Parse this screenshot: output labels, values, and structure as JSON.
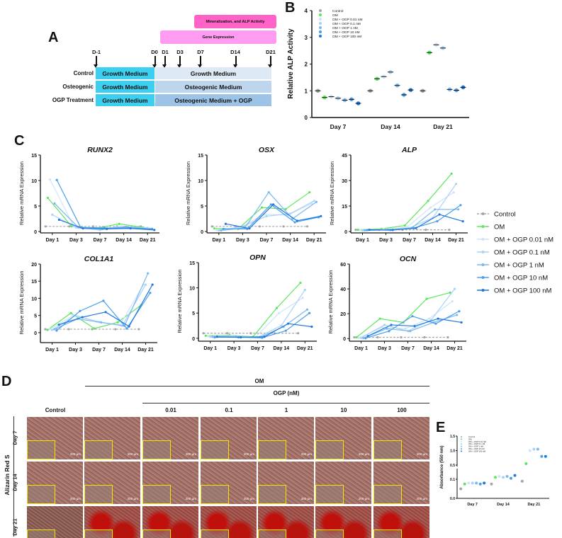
{
  "legend": {
    "series": [
      "Control",
      "OM",
      "OM + OGP 0.01 nM",
      "OM + OGP 0.1 nM",
      "OM + OGP 1 nM",
      "OM + OGP 10 nM",
      "OM + OGP 100 nM"
    ],
    "colors": [
      "#a6a6a6",
      "#5ce65c",
      "#cfe4fa",
      "#a9d2f5",
      "#7ab8f0",
      "#4a9eec",
      "#1f78de"
    ]
  },
  "panel_a": {
    "label": "A",
    "phase_mineralization": "Mineralization, and ALP Activity",
    "phase_gene": "Gene Expression",
    "days": [
      "D-1",
      "D0",
      "D1",
      "D3",
      "D7",
      "D14",
      "D21"
    ],
    "rows": [
      {
        "group": "Control",
        "pre": "Growth Medium",
        "post": "Growth Medium"
      },
      {
        "group": "Osteogenic",
        "pre": "Growth Medium",
        "post": "Osteogenic Medium"
      },
      {
        "group": "OGP Treatment",
        "pre": "Growth Medium",
        "post": "Osteogenic Medium + OGP"
      }
    ]
  },
  "panel_b": {
    "label": "B"
  },
  "panel_c": {
    "label": "C"
  },
  "panel_d": {
    "label": "D",
    "om": "OM",
    "ogp": "OGP (nM)",
    "columns": [
      "Control",
      "",
      "0.01",
      "0.1",
      "1",
      "10",
      "100"
    ],
    "rows": [
      "Day 7",
      "Day 14",
      "Day 21"
    ],
    "stain": "Alizarin Red S",
    "scale_bar": "200 µm"
  },
  "panel_e": {
    "label": "E"
  },
  "chart_data": [
    {
      "id": "B",
      "type": "scatter",
      "title": "",
      "xlabel": "",
      "ylabel": "Relative ALP Activity",
      "categories": [
        "Day 7",
        "Day 14",
        "Day 21"
      ],
      "ylim": [
        0,
        4
      ],
      "yticks": [
        "0",
        "1",
        "2",
        "3",
        "4"
      ],
      "series": [
        {
          "name": "Control",
          "values": [
            1.0,
            1.0,
            1.0
          ]
        },
        {
          "name": "OM",
          "values": [
            0.75,
            1.45,
            2.43
          ]
        },
        {
          "name": "OM + OGP 0.01 nM",
          "values": [
            0.78,
            1.53,
            2.72
          ]
        },
        {
          "name": "OM + OGP 0.1 nM",
          "values": [
            0.72,
            1.7,
            2.6
          ]
        },
        {
          "name": "OM + OGP 1 nM",
          "values": [
            0.65,
            1.2,
            1.05
          ]
        },
        {
          "name": "OM + OGP 10 nM",
          "values": [
            0.68,
            0.85,
            1.02
          ]
        },
        {
          "name": "OM + OGP 100 nM",
          "values": [
            0.53,
            1.03,
            1.13
          ]
        }
      ],
      "annotations": [
        "*"
      ]
    },
    {
      "id": "RUNX2",
      "type": "line",
      "title": "RUNX2",
      "ylabel": "Relative mRNA Expression",
      "categories": [
        "Day 1",
        "Day 3",
        "Day 7",
        "Day 14",
        "Day 21"
      ],
      "ylim": [
        0,
        15
      ],
      "yticks": [
        "0",
        "5",
        "10",
        "15"
      ],
      "series": [
        {
          "name": "Control",
          "values": [
            1,
            1,
            1,
            1,
            1
          ]
        },
        {
          "name": "OM",
          "values": [
            6.6,
            1.0,
            0.6,
            1.5,
            0.8
          ]
        },
        {
          "name": "OM + OGP 0.01 nM",
          "values": [
            10.2,
            1.0,
            0.4,
            1.0,
            0.7
          ]
        },
        {
          "name": "OM + OGP 0.1 nM",
          "values": [
            3.3,
            0.8,
            0.3,
            0.9,
            0.7
          ]
        },
        {
          "name": "OM + OGP 1 nM",
          "values": [
            5.5,
            0.8,
            0.5,
            0.9,
            0.5
          ]
        },
        {
          "name": "OM + OGP 10 nM",
          "values": [
            10.1,
            0.8,
            0.7,
            0.7,
            0.5
          ]
        },
        {
          "name": "OM + OGP 100 nM",
          "values": [
            2.3,
            0.6,
            0.5,
            0.6,
            0.3
          ]
        }
      ]
    },
    {
      "id": "OSX",
      "type": "line",
      "title": "OSX",
      "ylabel": "Relative mRNA Expression",
      "categories": [
        "Day 1",
        "Day 3",
        "Day 7",
        "Day 14",
        "Day 21"
      ],
      "ylim": [
        0,
        15
      ],
      "yticks": [
        "0",
        "5",
        "10",
        "15"
      ],
      "series": [
        {
          "name": "Control",
          "values": [
            1,
            1,
            1,
            1,
            1
          ]
        },
        {
          "name": "OM",
          "values": [
            0.6,
            0.5,
            4.7,
            4.4,
            7.7
          ]
        },
        {
          "name": "OM + OGP 0.01 nM",
          "values": [
            0.3,
            0.8,
            3.4,
            3.2,
            5.5
          ]
        },
        {
          "name": "OM + OGP 0.1 nM",
          "values": [
            0.2,
            1.0,
            3.0,
            3.5,
            6.0
          ]
        },
        {
          "name": "OM + OGP 1 nM",
          "values": [
            0.2,
            0.7,
            7.7,
            2.5,
            5.8
          ]
        },
        {
          "name": "OM + OGP 10 nM",
          "values": [
            0.5,
            0.5,
            5.3,
            1.8,
            2.8
          ]
        },
        {
          "name": "OM + OGP 100 nM",
          "values": [
            1.5,
            0.6,
            5.3,
            2.1,
            3.0
          ]
        }
      ]
    },
    {
      "id": "ALP",
      "type": "line",
      "title": "ALP",
      "ylabel": "Relative mRNA Expression",
      "categories": [
        "Day 1",
        "Day 3",
        "Day 7",
        "Day 14",
        "Day 21"
      ],
      "ylim": [
        0,
        45
      ],
      "yticks": [
        "0",
        "15",
        "30",
        "45"
      ],
      "series": [
        {
          "name": "Control",
          "values": [
            1,
            1,
            1,
            1,
            1
          ]
        },
        {
          "name": "OM",
          "values": [
            1.0,
            1.5,
            3.5,
            18,
            34
          ]
        },
        {
          "name": "OM + OGP 0.01 nM",
          "values": [
            0.7,
            1.2,
            2.5,
            14,
            23
          ]
        },
        {
          "name": "OM + OGP 0.1 nM",
          "values": [
            0.6,
            1.0,
            2.0,
            8,
            28
          ]
        },
        {
          "name": "OM + OGP 1 nM",
          "values": [
            0.6,
            1.0,
            2.0,
            13,
            13
          ]
        },
        {
          "name": "OM + OGP 10 nM",
          "values": [
            0.8,
            0.9,
            2.0,
            6,
            15.5
          ]
        },
        {
          "name": "OM + OGP 100 nM",
          "values": [
            1.0,
            0.9,
            2.0,
            10,
            6
          ]
        }
      ]
    },
    {
      "id": "COL1A1",
      "type": "line",
      "title": "COL1A1",
      "ylabel": "Relative mRNA Expression",
      "categories": [
        "Day 1",
        "Day 3",
        "Day 7",
        "Day 14",
        "Day 21"
      ],
      "ylim": [
        -2.5,
        20
      ],
      "yticks": [
        "0",
        "5",
        "10",
        "15",
        "20"
      ],
      "series": [
        {
          "name": "Control",
          "values": [
            1,
            1,
            1,
            1,
            1
          ]
        },
        {
          "name": "OM",
          "values": [
            0.8,
            5.7,
            1.2,
            3.0,
            8.0
          ]
        },
        {
          "name": "OM + OGP 0.01 nM",
          "values": [
            1.0,
            5.0,
            3.2,
            2.2,
            14
          ]
        },
        {
          "name": "OM + OGP 0.1 nM",
          "values": [
            0.8,
            5.0,
            3.1,
            2.0,
            14
          ]
        },
        {
          "name": "OM + OGP 1 nM",
          "values": [
            1.0,
            4.0,
            3.0,
            2.0,
            17.3
          ]
        },
        {
          "name": "OM + OGP 10 nM",
          "values": [
            0.6,
            6.3,
            9.3,
            1.2,
            11.6
          ]
        },
        {
          "name": "OM + OGP 100 nM",
          "values": [
            2.3,
            4.5,
            6.0,
            1.8,
            14
          ]
        }
      ]
    },
    {
      "id": "OPN",
      "type": "line",
      "title": "OPN",
      "ylabel": "Relative mRNA Expression",
      "categories": [
        "Day 1",
        "Day 3",
        "Day 7",
        "Day 14",
        "Day 21"
      ],
      "ylim": [
        -0.3,
        15
      ],
      "yticks": [
        "0",
        "5",
        "10",
        "15"
      ],
      "series": [
        {
          "name": "Control",
          "values": [
            1,
            1,
            1,
            1,
            1
          ]
        },
        {
          "name": "OM",
          "values": [
            0.5,
            0.6,
            0.3,
            6.0,
            11.0
          ]
        },
        {
          "name": "OM + OGP 0.01 nM",
          "values": [
            0.4,
            0.5,
            0.2,
            5.0,
            8.0
          ]
        },
        {
          "name": "OM + OGP 0.1 nM",
          "values": [
            0.3,
            0.4,
            0.2,
            2.5,
            9.6
          ]
        },
        {
          "name": "OM + OGP 1 nM",
          "values": [
            0.3,
            0.3,
            0.2,
            2.3,
            5.7
          ]
        },
        {
          "name": "OM + OGP 10 nM",
          "values": [
            0.2,
            0.2,
            0.1,
            1.5,
            5.0
          ]
        },
        {
          "name": "OM + OGP 100 nM",
          "values": [
            0.3,
            0.2,
            0.3,
            2.9,
            2.3
          ]
        }
      ]
    },
    {
      "id": "OCN",
      "type": "line",
      "title": "OCN",
      "ylabel": "Relative mRNA Expression",
      "categories": [
        "Day 1",
        "Day 3",
        "Day 7",
        "Day 14",
        "Day 21"
      ],
      "ylim": [
        -1,
        60
      ],
      "yticks": [
        "0",
        "20",
        "40",
        "60"
      ],
      "series": [
        {
          "name": "Control",
          "values": [
            1,
            1,
            1,
            1,
            1
          ]
        },
        {
          "name": "OM",
          "values": [
            1,
            16,
            13,
            32,
            37
          ]
        },
        {
          "name": "OM + OGP 0.01 nM",
          "values": [
            0.5,
            9,
            8,
            16,
            30
          ]
        },
        {
          "name": "OM + OGP 0.1 nM",
          "values": [
            0.5,
            11,
            6,
            15,
            40
          ]
        },
        {
          "name": "OM + OGP 1 nM",
          "values": [
            0.4,
            8,
            6,
            13,
            19
          ]
        },
        {
          "name": "OM + OGP 10 nM",
          "values": [
            0.3,
            6,
            18,
            12,
            22
          ]
        },
        {
          "name": "OM + OGP 100 nM",
          "values": [
            2,
            11,
            10,
            16,
            13
          ]
        }
      ]
    },
    {
      "id": "E",
      "type": "scatter",
      "title": "",
      "ylabel": "Absorbance (550 nm)",
      "categories": [
        "Day 7",
        "Day 14",
        "Day 21"
      ],
      "ylim": [
        0,
        1.5
      ],
      "axis_break": [
        0.15,
        0.5
      ],
      "yticks": [
        "0.0",
        "0.1",
        "0.5",
        "1.0",
        "1.5"
      ],
      "series": [
        {
          "name": "Control",
          "values": [
            0.05,
            0.075,
            0.09
          ]
        },
        {
          "name": "OM",
          "values": [
            0.075,
            0.11,
            0.55
          ]
        },
        {
          "name": "OM + OGP 0.01 nM",
          "values": [
            0.08,
            0.115,
            1.0
          ]
        },
        {
          "name": "OM + OGP 0.1 nM",
          "values": [
            0.08,
            0.11,
            1.05
          ]
        },
        {
          "name": "OM + OGP 1 nM",
          "values": [
            0.08,
            0.115,
            1.05
          ]
        },
        {
          "name": "OM + OGP 10 nM",
          "values": [
            0.075,
            0.105,
            0.8
          ]
        },
        {
          "name": "OM + OGP 100 nM",
          "values": [
            0.08,
            0.12,
            0.8
          ]
        }
      ]
    }
  ]
}
